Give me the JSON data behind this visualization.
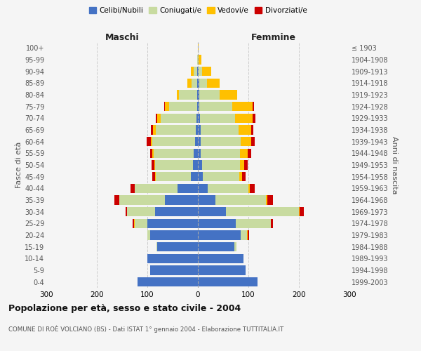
{
  "age_groups": [
    "0-4",
    "5-9",
    "10-14",
    "15-19",
    "20-24",
    "25-29",
    "30-34",
    "35-39",
    "40-44",
    "45-49",
    "50-54",
    "55-59",
    "60-64",
    "65-69",
    "70-74",
    "75-79",
    "80-84",
    "85-89",
    "90-94",
    "95-99",
    "100+"
  ],
  "birth_years": [
    "1999-2003",
    "1994-1998",
    "1989-1993",
    "1984-1988",
    "1979-1983",
    "1974-1978",
    "1969-1973",
    "1964-1968",
    "1959-1963",
    "1954-1958",
    "1949-1953",
    "1944-1948",
    "1939-1943",
    "1934-1938",
    "1929-1933",
    "1924-1928",
    "1919-1923",
    "1914-1918",
    "1909-1913",
    "1904-1908",
    "≤ 1903"
  ],
  "male": {
    "celibe": [
      120,
      95,
      100,
      80,
      95,
      100,
      85,
      65,
      40,
      14,
      10,
      8,
      5,
      4,
      3,
      2,
      2,
      1,
      1,
      0,
      0
    ],
    "coniugato": [
      0,
      0,
      0,
      2,
      5,
      25,
      55,
      90,
      85,
      70,
      75,
      80,
      85,
      80,
      70,
      55,
      35,
      12,
      8,
      1,
      0
    ],
    "vedovo": [
      0,
      0,
      0,
      0,
      0,
      2,
      0,
      0,
      0,
      1,
      1,
      2,
      3,
      5,
      8,
      8,
      5,
      8,
      5,
      1,
      0
    ],
    "divorziato": [
      0,
      0,
      0,
      0,
      0,
      2,
      3,
      10,
      8,
      5,
      5,
      5,
      8,
      4,
      3,
      2,
      0,
      0,
      0,
      0,
      0
    ]
  },
  "female": {
    "nubile": [
      118,
      95,
      90,
      72,
      85,
      75,
      55,
      35,
      20,
      10,
      8,
      5,
      5,
      5,
      4,
      3,
      3,
      3,
      1,
      0,
      0
    ],
    "coniugata": [
      0,
      0,
      0,
      4,
      12,
      70,
      145,
      100,
      80,
      72,
      75,
      78,
      80,
      75,
      70,
      65,
      40,
      15,
      8,
      2,
      0
    ],
    "vedova": [
      0,
      0,
      0,
      0,
      2,
      0,
      2,
      3,
      3,
      5,
      8,
      15,
      20,
      25,
      35,
      40,
      35,
      25,
      18,
      5,
      2
    ],
    "divorziata": [
      0,
      0,
      0,
      0,
      2,
      3,
      8,
      10,
      10,
      8,
      8,
      8,
      8,
      5,
      5,
      3,
      0,
      0,
      0,
      0,
      0
    ]
  },
  "colors": {
    "celibe": "#4472c4",
    "coniugato": "#c8dba0",
    "vedovo": "#ffc000",
    "divorziato": "#cc0000"
  },
  "legend_labels": [
    "Celibi/Nubili",
    "Coniugati/e",
    "Vedovi/e",
    "Divorziati/e"
  ],
  "title": "Popolazione per età, sesso e stato civile - 2004",
  "subtitle": "COMUNE DI ROÈ VOLCIANO (BS) - Dati ISTAT 1° gennaio 2004 - Elaborazione TUTTITALIA.IT",
  "ylabel_left": "Fasce di età",
  "ylabel_right": "Anni di nascita",
  "xlabel_left": "Maschi",
  "xlabel_right": "Femmine",
  "xlim": 300,
  "background_color": "#f5f5f5",
  "grid_color": "#cccccc"
}
